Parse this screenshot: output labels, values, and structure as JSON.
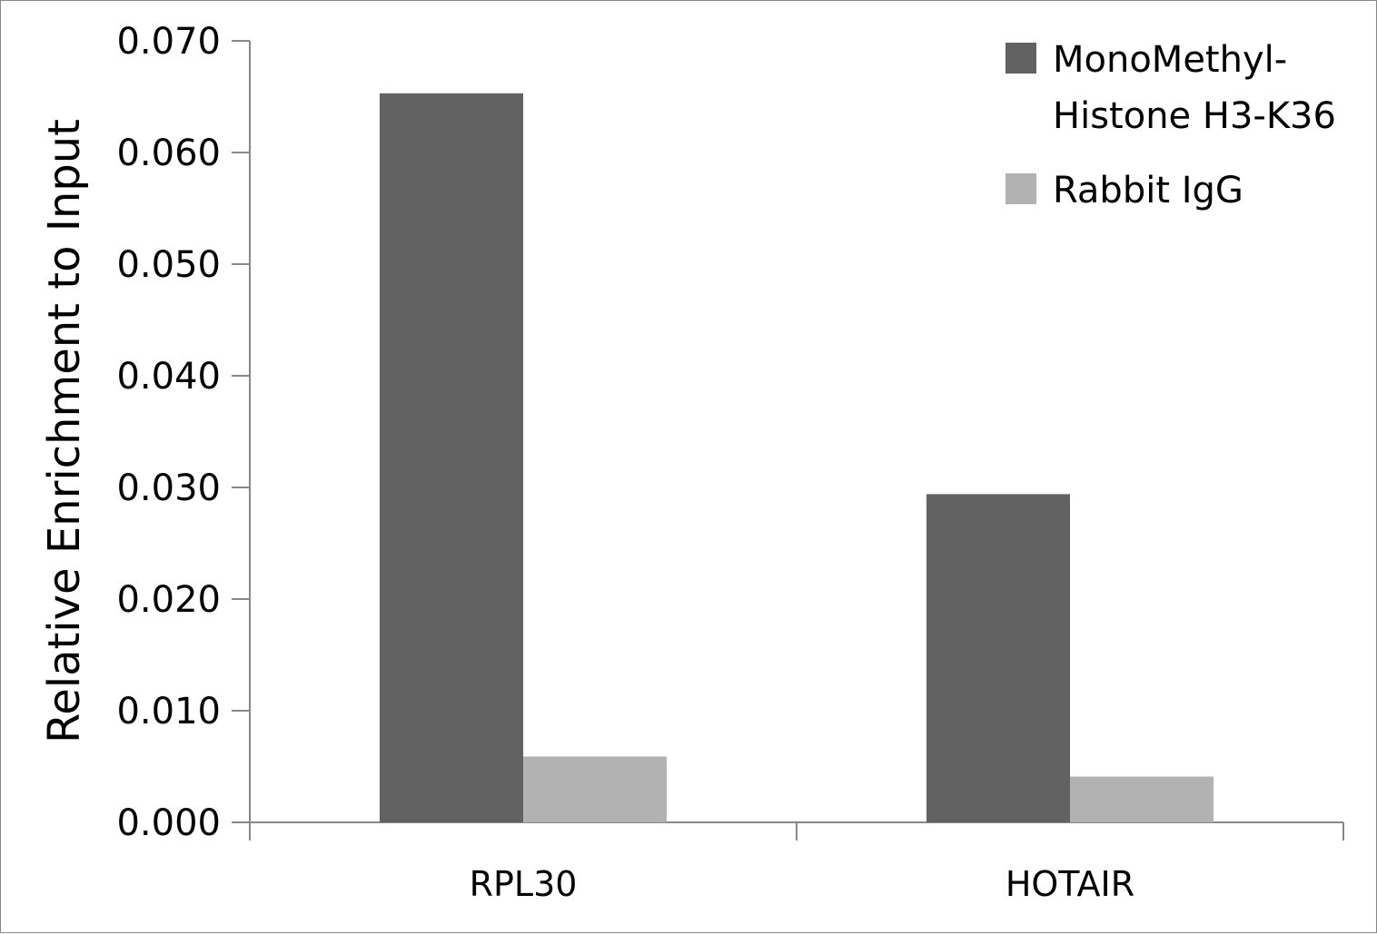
{
  "chart_data": {
    "type": "bar",
    "title": "",
    "xlabel": "",
    "ylabel": "Relative Enrichment to Input",
    "categories": [
      "RPL30",
      "HOTAIR"
    ],
    "series": [
      {
        "name": "MonoMethyl-Histone H3-K36",
        "legend_lines": [
          "MonoMethyl-",
          "Histone H3-K36"
        ],
        "color": "#626262",
        "values": [
          0.0653,
          0.0294
        ]
      },
      {
        "name": "Rabbit IgG",
        "legend_lines": [
          "Rabbit IgG"
        ],
        "color": "#b2b2b2",
        "values": [
          0.0059,
          0.0041
        ]
      }
    ],
    "ylim": [
      0,
      0.07
    ],
    "yticks": [
      0,
      0.01,
      0.02,
      0.03,
      0.04,
      0.05,
      0.06,
      0.07
    ],
    "ytick_labels": [
      "0.000",
      "0.010",
      "0.020",
      "0.030",
      "0.040",
      "0.050",
      "0.060",
      "0.070"
    ],
    "grid": false,
    "legend_position": "top-right"
  }
}
